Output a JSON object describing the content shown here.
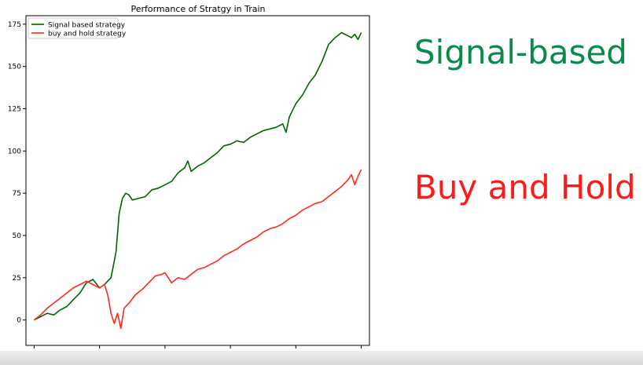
{
  "slide": {
    "labels": [
      {
        "text": "Signal-based",
        "color": "#0a8a4a"
      },
      {
        "text": "Buy and Hold",
        "color": "#ff1a1a"
      }
    ]
  },
  "chart_data": {
    "type": "line",
    "title": "Performance of Stratgy in Train",
    "xlabel": "",
    "ylabel": "",
    "xlim": [
      -25,
      1025
    ],
    "ylim": [
      -15,
      180
    ],
    "xticks": [
      0,
      200,
      400,
      600,
      800,
      1000
    ],
    "yticks": [
      0,
      25,
      50,
      75,
      100,
      125,
      150,
      175
    ],
    "grid": false,
    "legend": "top-left",
    "series": [
      {
        "name": "Signal based strategy",
        "color": "#006400",
        "x": [
          0,
          20,
          40,
          60,
          80,
          100,
          120,
          140,
          160,
          180,
          200,
          215,
          225,
          235,
          250,
          260,
          270,
          280,
          290,
          300,
          320,
          340,
          360,
          380,
          400,
          420,
          440,
          460,
          470,
          480,
          500,
          520,
          540,
          560,
          580,
          600,
          620,
          640,
          660,
          680,
          700,
          720,
          740,
          760,
          770,
          780,
          800,
          820,
          840,
          860,
          880,
          900,
          910,
          920,
          940,
          960,
          970,
          980,
          990,
          1000
        ],
        "y": [
          0,
          2,
          4,
          3,
          6,
          8,
          12,
          16,
          22,
          24,
          19,
          21,
          23,
          25,
          40,
          63,
          72,
          75,
          74,
          71,
          72,
          73,
          77,
          78,
          80,
          82,
          87,
          90,
          94,
          88,
          91,
          93,
          96,
          99,
          103,
          104,
          106,
          105,
          108,
          110,
          112,
          113,
          114,
          116,
          111,
          120,
          128,
          133,
          140,
          145,
          153,
          163,
          165,
          167,
          170,
          168,
          167,
          169,
          166,
          170
        ]
      },
      {
        "name": "buy and hold strategy",
        "color": "#ff2a1a",
        "x": [
          0,
          20,
          40,
          60,
          80,
          100,
          120,
          140,
          160,
          180,
          200,
          215,
          225,
          235,
          245,
          255,
          265,
          275,
          290,
          310,
          330,
          350,
          370,
          390,
          400,
          420,
          440,
          460,
          480,
          500,
          520,
          540,
          560,
          580,
          600,
          620,
          640,
          660,
          680,
          700,
          720,
          740,
          760,
          780,
          800,
          820,
          840,
          860,
          880,
          900,
          920,
          940,
          960,
          970,
          980,
          990,
          1000
        ],
        "y": [
          0,
          3,
          7,
          10,
          13,
          16,
          19,
          21,
          23,
          21,
          19,
          21,
          15,
          4,
          -2,
          4,
          -5,
          7,
          10,
          15,
          18,
          22,
          26,
          27,
          28,
          22,
          25,
          24,
          27,
          30,
          31,
          33,
          35,
          38,
          40,
          42,
          45,
          47,
          49,
          52,
          54,
          55,
          57,
          60,
          62,
          65,
          67,
          69,
          70,
          73,
          76,
          79,
          83,
          86,
          80,
          85,
          89
        ]
      }
    ]
  }
}
